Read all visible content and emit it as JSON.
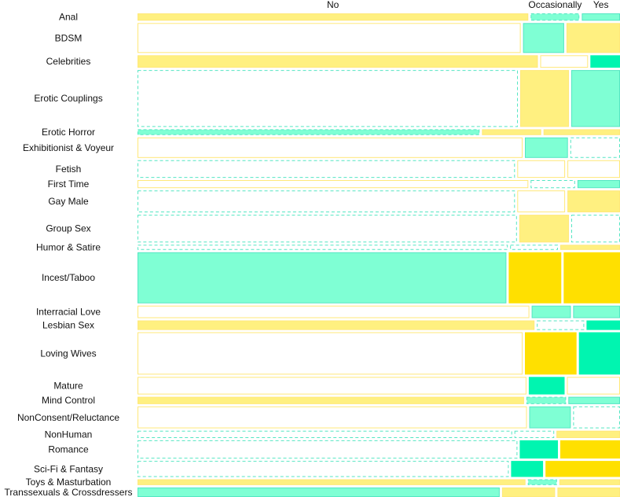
{
  "chart_data": {
    "type": "mosaic",
    "title": "",
    "column_categories": [
      "No",
      "Occasionally",
      "Yes"
    ],
    "row_categories": [
      "Anal",
      "BDSM",
      "Celebrities",
      "Erotic Couplings",
      "Erotic Horror",
      "Exhibitionist & Voyeur",
      "Fetish",
      "First Time",
      "Gay Male",
      "Group Sex",
      "Humor & Satire",
      "Incest/Taboo",
      "Interracial Love",
      "Lesbian Sex",
      "Loving Wives",
      "Mature",
      "Mind Control",
      "NonConsent/Reluctance",
      "NonHuman",
      "Romance",
      "Sci-Fi & Fantasy",
      "Toys & Masturbation",
      "Transsexuals & Crossdressers"
    ],
    "row_weights": [
      10,
      41,
      17,
      78,
      8,
      28,
      24,
      11,
      30,
      38,
      7,
      70,
      17,
      13,
      58,
      24,
      10,
      30,
      10,
      25,
      22,
      8,
      13
    ],
    "cells": [
      {
        "no": 0.818,
        "occ": 0.102,
        "yes": 0.08,
        "shade": [
          "solid-light-yellow",
          "dash-light-teal",
          "solid-light-teal"
        ]
      },
      {
        "no": 0.802,
        "occ": 0.086,
        "yes": 0.112,
        "shade": [
          "solid-yellow-outline",
          "solid-light-teal",
          "solid-light-yellow"
        ]
      },
      {
        "no": 0.838,
        "occ": 0.1,
        "yes": 0.062,
        "shade": [
          "solid-light-yellow",
          "solid-yellow-outline",
          "solid-teal"
        ]
      },
      {
        "no": 0.796,
        "occ": 0.102,
        "yes": 0.102,
        "shade": [
          "dash-teal-outline",
          "solid-light-yellow",
          "solid-light-teal"
        ]
      },
      {
        "no": 0.716,
        "occ": 0.124,
        "yes": 0.16,
        "shade": [
          "dash-light-teal",
          "solid-light-yellow",
          "solid-light-yellow"
        ]
      },
      {
        "no": 0.806,
        "occ": 0.09,
        "yes": 0.104,
        "shade": [
          "solid-yellow-outline",
          "solid-light-teal",
          "dash-teal-outline"
        ]
      },
      {
        "no": 0.79,
        "occ": 0.1,
        "yes": 0.11,
        "shade": [
          "dash-teal-outline",
          "solid-yellow-outline",
          "solid-yellow-outline"
        ]
      },
      {
        "no": 0.818,
        "occ": 0.093,
        "yes": 0.089,
        "shade": [
          "solid-yellow-outline",
          "dash-teal-outline",
          "solid-light-teal"
        ]
      },
      {
        "no": 0.79,
        "occ": 0.1,
        "yes": 0.11,
        "shade": [
          "dash-teal-outline",
          "solid-yellow-outline",
          "solid-light-yellow"
        ]
      },
      {
        "no": 0.794,
        "occ": 0.104,
        "yes": 0.102,
        "shade": [
          "dash-teal-outline",
          "solid-light-yellow",
          "dash-teal-outline"
        ]
      },
      {
        "no": 0.775,
        "occ": 0.1,
        "yes": 0.125,
        "shade": [
          "dash-teal-outline",
          "dash-teal-outline",
          "solid-light-yellow"
        ]
      },
      {
        "no": 0.772,
        "occ": 0.11,
        "yes": 0.118,
        "shade": [
          "solid-light-teal",
          "solid-yellow",
          "solid-yellow"
        ]
      },
      {
        "no": 0.82,
        "occ": 0.082,
        "yes": 0.098,
        "shade": [
          "solid-yellow-outline",
          "solid-light-teal",
          "solid-light-teal"
        ]
      },
      {
        "no": 0.831,
        "occ": 0.099,
        "yes": 0.07,
        "shade": [
          "solid-light-yellow",
          "dash-teal-outline",
          "solid-teal"
        ]
      },
      {
        "no": 0.806,
        "occ": 0.108,
        "yes": 0.086,
        "shade": [
          "solid-yellow-outline",
          "solid-yellow",
          "solid-teal"
        ]
      },
      {
        "no": 0.814,
        "occ": 0.075,
        "yes": 0.111,
        "shade": [
          "solid-yellow-outline",
          "solid-teal",
          "solid-yellow-outline"
        ]
      },
      {
        "no": 0.809,
        "occ": 0.083,
        "yes": 0.108,
        "shade": [
          "solid-light-yellow",
          "dash-light-teal",
          "solid-light-teal"
        ]
      },
      {
        "no": 0.815,
        "occ": 0.087,
        "yes": 0.098,
        "shade": [
          "solid-yellow-outline",
          "solid-light-teal",
          "dash-teal-outline"
        ]
      },
      {
        "no": 0.784,
        "occ": 0.083,
        "yes": 0.133,
        "shade": [
          "dash-teal-outline",
          "dash-teal-outline",
          "solid-light-yellow"
        ]
      },
      {
        "no": 0.795,
        "occ": 0.08,
        "yes": 0.125,
        "shade": [
          "dash-teal-outline",
          "solid-teal",
          "solid-yellow"
        ]
      },
      {
        "no": 0.777,
        "occ": 0.067,
        "yes": 0.156,
        "shade": [
          "dash-teal-outline",
          "solid-teal",
          "solid-yellow"
        ]
      },
      {
        "no": 0.812,
        "occ": 0.061,
        "yes": 0.127,
        "shade": [
          "solid-light-yellow",
          "dash-light-teal",
          "solid-light-yellow"
        ]
      },
      {
        "no": 0.758,
        "occ": 0.111,
        "yes": 0.131,
        "shade": [
          "solid-light-teal",
          "solid-light-yellow",
          "solid-light-yellow"
        ]
      }
    ],
    "colors": {
      "solid-teal": "#00f5b0",
      "solid-light-teal": "#7fffd4",
      "solid-yellow": "#ffe000",
      "solid-light-yellow": "#fff080",
      "outline-yellow": "#ffe87a",
      "outline-teal": "#55e6c3"
    }
  }
}
